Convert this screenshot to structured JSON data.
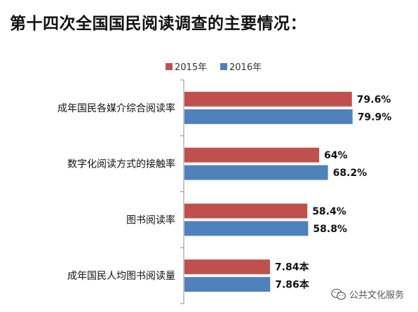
{
  "title": "第十四次全国国民阅读调查的主要情况：",
  "watermark": {
    "icon": "wechat-icon",
    "text": "公共文化服务"
  },
  "chart_data": {
    "type": "bar",
    "orientation": "horizontal",
    "legend_position": "top",
    "grid": false,
    "categories": [
      "成年国民各媒介综合阅读率",
      "数字化阅读方式的接触率",
      "图书阅读率",
      "成年国民人均图书阅读量"
    ],
    "series": [
      {
        "name": "2015年",
        "color": "#c0504d",
        "values": [
          79.6,
          64,
          58.4,
          7.84
        ],
        "labels": [
          "79.6%",
          "64%",
          "58.4%",
          "7.84本"
        ]
      },
      {
        "name": "2016年",
        "color": "#4f81bd",
        "values": [
          79.9,
          68.2,
          58.8,
          7.86
        ],
        "labels": [
          "79.9%",
          "68.2%",
          "58.8%",
          "7.86本"
        ]
      }
    ]
  }
}
